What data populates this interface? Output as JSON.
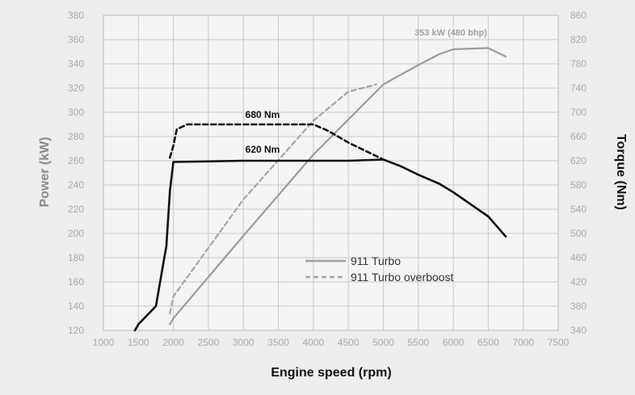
{
  "chart_data": {
    "type": "line",
    "xlabel": "Engine speed (rpm)",
    "ylabel_left": "Power (kW)",
    "ylabel_right": "Torque (Nm)",
    "xlim": [
      1000,
      7500
    ],
    "ylim_left": [
      120,
      380
    ],
    "ylim_right": [
      340,
      860
    ],
    "x_ticks": [
      "1000",
      "1500",
      "2000",
      "2500",
      "3000",
      "3500",
      "4000",
      "4500",
      "5000",
      "5500",
      "6000",
      "6500",
      "7000",
      "7500"
    ],
    "y_left_ticks": [
      "120",
      "140",
      "160",
      "180",
      "200",
      "220",
      "240",
      "260",
      "280",
      "300",
      "320",
      "340",
      "360",
      "380"
    ],
    "y_right_ticks": [
      "340",
      "380",
      "420",
      "460",
      "500",
      "540",
      "580",
      "620",
      "660",
      "700",
      "740",
      "780",
      "820",
      "860"
    ],
    "grid": true,
    "legend": {
      "position": "center-right",
      "entries": [
        "911 Turbo",
        "911 Turbo overboost"
      ]
    },
    "annotations": {
      "peak_power": "353 kW (480 bhp)",
      "torque_overboost": "680 Nm",
      "torque_normal": "620 Nm"
    },
    "series": [
      {
        "name": "911 Turbo",
        "kind": "power",
        "axis": "left",
        "color": "#9a9c9e",
        "dash": "solid",
        "x": [
          1950,
          2000,
          3000,
          4000,
          5000,
          5500,
          5800,
          6000,
          6500,
          6750
        ],
        "y": [
          125,
          130,
          198,
          265,
          323,
          339,
          348,
          352,
          353,
          346
        ]
      },
      {
        "name": "911 Turbo overboost",
        "kind": "power",
        "axis": "left",
        "color": "#a4a6a8",
        "dash": "dashed",
        "x": [
          1950,
          2000,
          3000,
          4000,
          4500,
          4900
        ],
        "y": [
          134,
          148,
          228,
          293,
          317,
          323
        ]
      },
      {
        "name": "911 Turbo",
        "kind": "torque",
        "axis": "right",
        "color": "#111111",
        "dash": "solid",
        "x": [
          1450,
          1500,
          1750,
          1900,
          1950,
          2000,
          3000,
          4000,
          4500,
          5000,
          5250,
          5500,
          5800,
          6000,
          6500,
          6750
        ],
        "y": [
          340,
          350,
          380,
          480,
          570,
          618,
          620,
          620,
          620,
          622,
          611,
          597,
          582,
          568,
          528,
          495
        ]
      },
      {
        "name": "911 Turbo overboost",
        "kind": "torque",
        "axis": "right",
        "color": "#111111",
        "dash": "dashed",
        "x": [
          1950,
          2000,
          2050,
          2200,
          3000,
          3500,
          4000,
          4200,
          4500,
          5000
        ],
        "y": [
          625,
          645,
          672,
          680,
          680,
          680,
          680,
          670,
          650,
          622
        ]
      }
    ]
  }
}
